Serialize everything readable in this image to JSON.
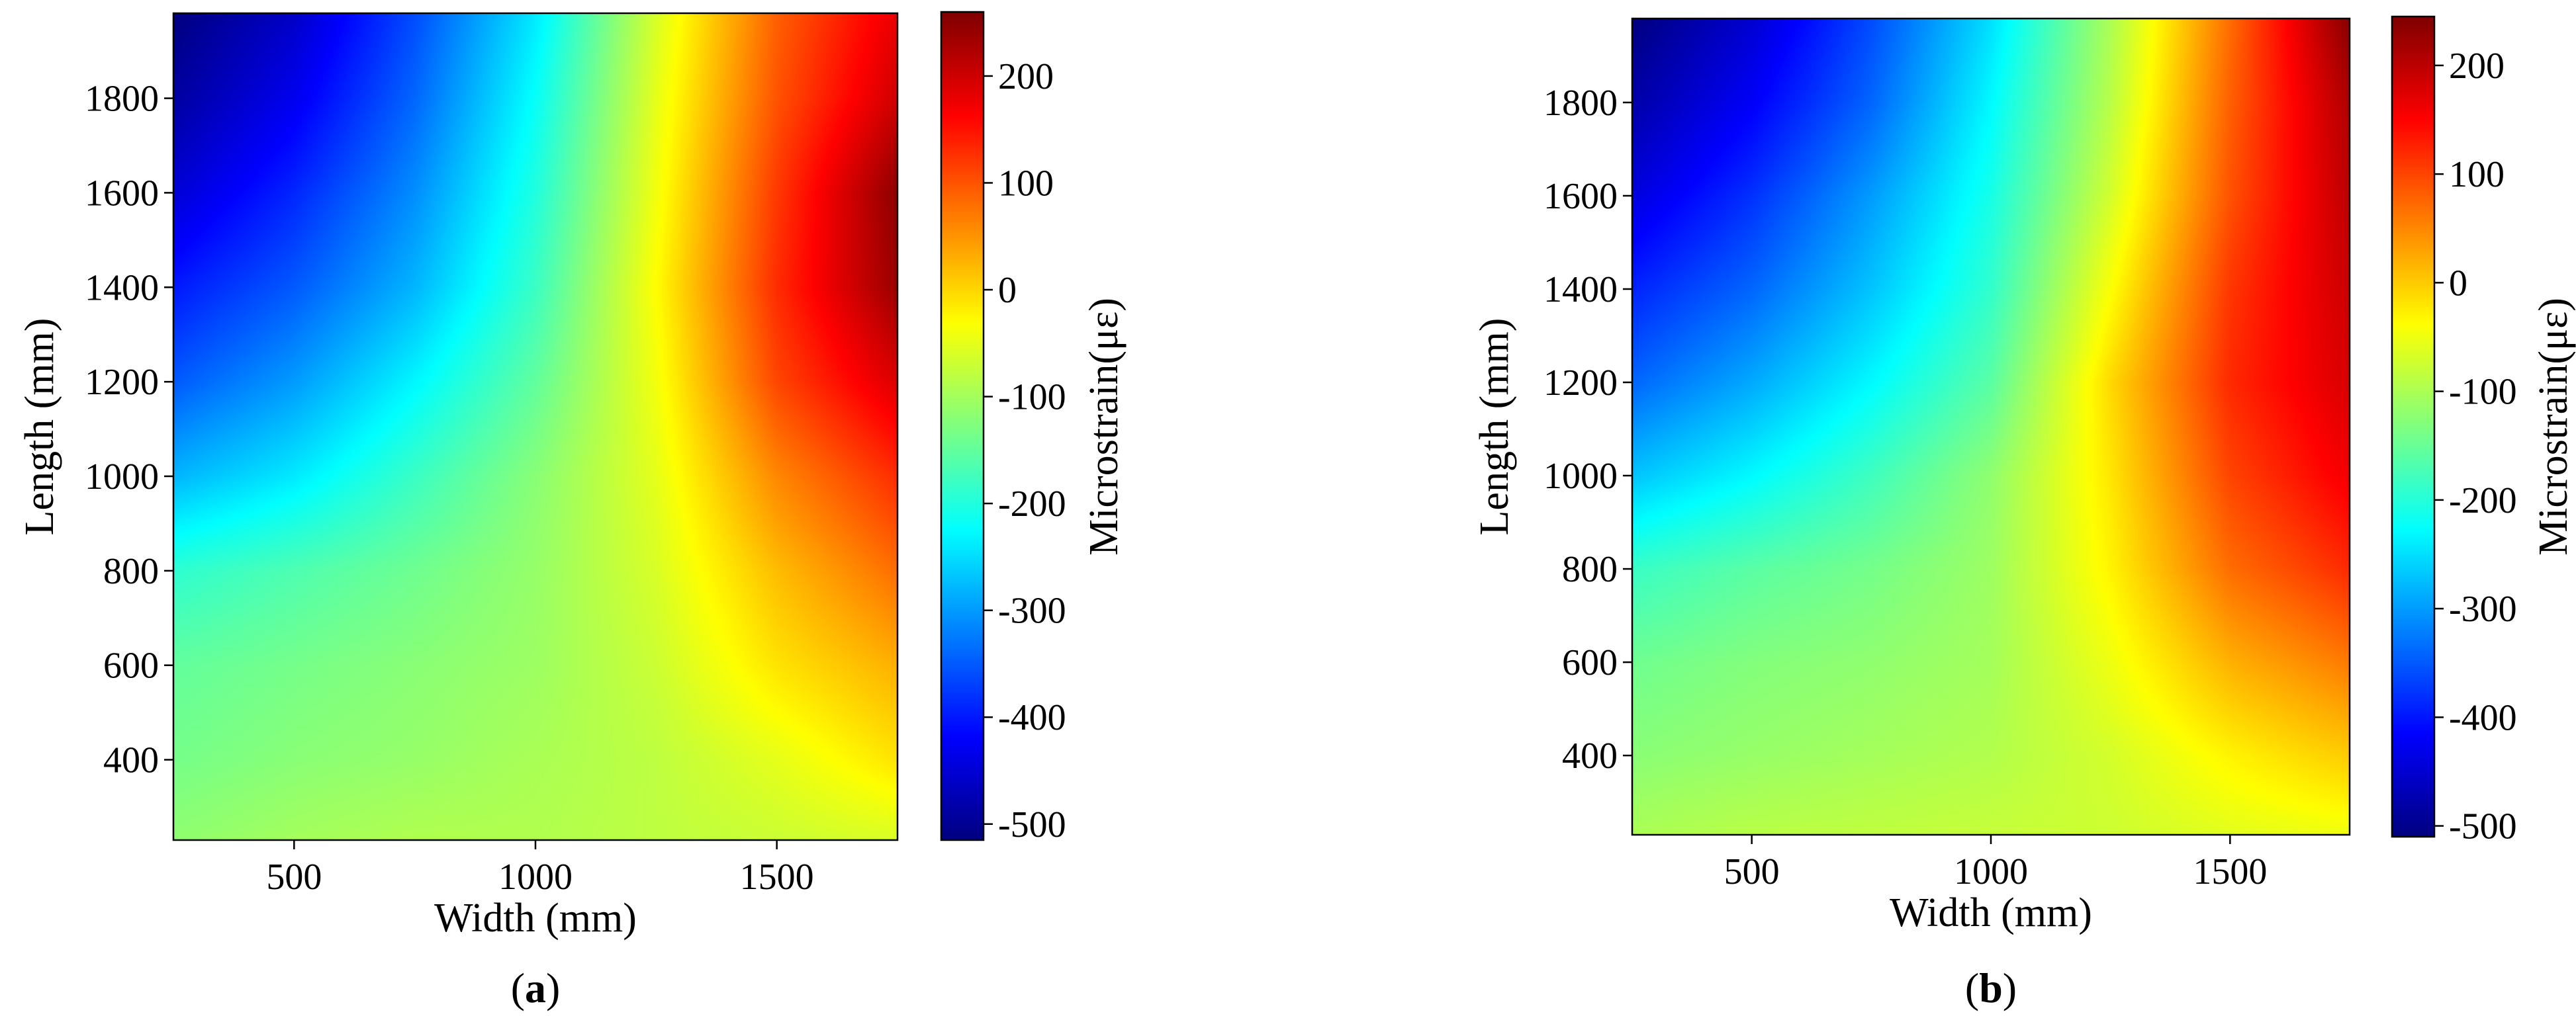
{
  "figure": {
    "panels": [
      {
        "caption_open": "(",
        "caption_letter": "a",
        "caption_close": ")"
      },
      {
        "caption_open": "(",
        "caption_letter": "b",
        "caption_close": ")"
      }
    ]
  },
  "chart_data": [
    {
      "type": "heatmap",
      "title": "",
      "xlabel": "Width (mm)",
      "ylabel": "Length (mm)",
      "colorbar_label": "Microstrain(με)",
      "colormap": "jet",
      "xlim": [
        250,
        1750
      ],
      "ylim": [
        230,
        1980
      ],
      "x_ticks": [
        500,
        1000,
        1500
      ],
      "y_ticks": [
        400,
        600,
        800,
        1000,
        1200,
        1400,
        1600,
        1800
      ],
      "clim": [
        -515,
        260
      ],
      "colorbar_ticks": [
        200,
        100,
        0,
        -100,
        -200,
        -300,
        -400,
        -500
      ],
      "grid": false,
      "x": [
        250,
        500,
        750,
        1000,
        1250,
        1500,
        1750
      ],
      "y": [
        230,
        400,
        600,
        800,
        1000,
        1200,
        1400,
        1600,
        1800,
        1980
      ],
      "z": [
        [
          -115,
          -100,
          -90,
          -90,
          -80,
          -70,
          -60
        ],
        [
          -135,
          -120,
          -110,
          -95,
          -80,
          -50,
          -10
        ],
        [
          -150,
          -135,
          -120,
          -105,
          -70,
          -10,
          30
        ],
        [
          -190,
          -165,
          -140,
          -110,
          -60,
          20,
          80
        ],
        [
          -280,
          -240,
          -180,
          -120,
          -50,
          60,
          130
        ],
        [
          -350,
          -300,
          -230,
          -150,
          -40,
          110,
          190
        ],
        [
          -400,
          -350,
          -280,
          -180,
          -30,
          130,
          240
        ],
        [
          -450,
          -390,
          -310,
          -200,
          -40,
          120,
          250
        ],
        [
          -490,
          -430,
          -340,
          -220,
          -50,
          100,
          200
        ],
        [
          -515,
          -460,
          -360,
          -240,
          -60,
          90,
          180
        ]
      ]
    },
    {
      "type": "heatmap",
      "title": "",
      "xlabel": "Width (mm)",
      "ylabel": "Length (mm)",
      "colorbar_label": "Microstrain(με)",
      "colormap": "jet",
      "xlim": [
        250,
        1750
      ],
      "ylim": [
        230,
        1980
      ],
      "x_ticks": [
        500,
        1000,
        1500
      ],
      "y_ticks": [
        400,
        600,
        800,
        1000,
        1200,
        1400,
        1600,
        1800
      ],
      "clim": [
        -510,
        245
      ],
      "colorbar_ticks": [
        200,
        100,
        0,
        -100,
        -200,
        -300,
        -400,
        -500
      ],
      "grid": false,
      "x": [
        250,
        500,
        750,
        1000,
        1250,
        1500,
        1750
      ],
      "y": [
        230,
        400,
        600,
        800,
        1000,
        1200,
        1400,
        1600,
        1800,
        1980
      ],
      "z": [
        [
          -100,
          -90,
          -85,
          -80,
          -75,
          -60,
          -50
        ],
        [
          -125,
          -115,
          -105,
          -95,
          -70,
          -30,
          0
        ],
        [
          -145,
          -130,
          -120,
          -105,
          -50,
          20,
          60
        ],
        [
          -185,
          -160,
          -140,
          -110,
          -30,
          70,
          120
        ],
        [
          -270,
          -230,
          -180,
          -120,
          -20,
          100,
          160
        ],
        [
          -340,
          -290,
          -230,
          -160,
          -10,
          120,
          180
        ],
        [
          -390,
          -340,
          -270,
          -190,
          -40,
          110,
          190
        ],
        [
          -440,
          -380,
          -300,
          -210,
          -70,
          90,
          200
        ],
        [
          -480,
          -420,
          -340,
          -230,
          -90,
          80,
          210
        ],
        [
          -510,
          -450,
          -360,
          -250,
          -100,
          70,
          240
        ]
      ]
    }
  ]
}
